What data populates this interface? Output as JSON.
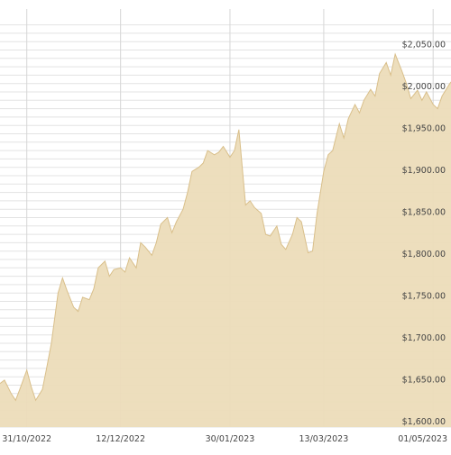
{
  "colors": {
    "area_fill": "#ecdcb9",
    "area_stroke": "#d9bf8a",
    "grid": "#e3e3e3",
    "text": "#444444"
  },
  "chart_data": {
    "type": "area",
    "title": "",
    "xlabel": "",
    "ylabel": "",
    "grid": true,
    "legend": "none",
    "ylim": [
      1600,
      2080
    ],
    "x_range": [
      "2022-10-19",
      "2023-05-09"
    ],
    "x_ticks": [
      "31/10/2022",
      "12/12/2022",
      "30/01/2023",
      "13/03/2023",
      "01/05/2023"
    ],
    "x_tick_dates": [
      "2022-10-31",
      "2022-12-12",
      "2023-01-30",
      "2023-03-13",
      "2023-05-01"
    ],
    "y_ticks": [
      1600,
      1650,
      1700,
      1750,
      1800,
      1850,
      1900,
      1950,
      2000,
      2050
    ],
    "y_tick_labels": [
      "$1,600.00",
      "$1,650.00",
      "$1,700.00",
      "$1,750.00",
      "$1,800.00",
      "$1,850.00",
      "$1,900.00",
      "$1,950.00",
      "$2,000.00",
      "$2,050.00"
    ],
    "series": [
      {
        "x": [
          "2022-10-19",
          "2022-10-21",
          "2022-10-24",
          "2022-10-26",
          "2022-10-28",
          "2022-10-31",
          "2022-11-02",
          "2022-11-04",
          "2022-11-07",
          "2022-11-09",
          "2022-11-11",
          "2022-11-14",
          "2022-11-16",
          "2022-11-18",
          "2022-11-21",
          "2022-11-23",
          "2022-11-25",
          "2022-11-28",
          "2022-11-30",
          "2022-12-02",
          "2022-12-05",
          "2022-12-07",
          "2022-12-09",
          "2022-12-12",
          "2022-12-14",
          "2022-12-16",
          "2022-12-19",
          "2022-12-21",
          "2022-12-23",
          "2022-12-26",
          "2022-12-28",
          "2022-12-30",
          "2023-01-02",
          "2023-01-04",
          "2023-01-06",
          "2023-01-09",
          "2023-01-11",
          "2023-01-13",
          "2023-01-16",
          "2023-01-18",
          "2023-01-20",
          "2023-01-23",
          "2023-01-25",
          "2023-01-27",
          "2023-01-30",
          "2023-02-01",
          "2023-02-03",
          "2023-02-06",
          "2023-02-08",
          "2023-02-10",
          "2023-02-13",
          "2023-02-15",
          "2023-02-17",
          "2023-02-20",
          "2023-02-22",
          "2023-02-24",
          "2023-02-27",
          "2023-03-01",
          "2023-03-03",
          "2023-03-06",
          "2023-03-08",
          "2023-03-10",
          "2023-03-13",
          "2023-03-15",
          "2023-03-17",
          "2023-03-20",
          "2023-03-22",
          "2023-03-24",
          "2023-03-27",
          "2023-03-29",
          "2023-03-31",
          "2023-04-03",
          "2023-04-05",
          "2023-04-07",
          "2023-04-10",
          "2023-04-12",
          "2023-04-14",
          "2023-04-17",
          "2023-04-19",
          "2023-04-21",
          "2023-04-24",
          "2023-04-26",
          "2023-04-28",
          "2023-05-01",
          "2023-05-03",
          "2023-05-05",
          "2023-05-08",
          "2023-05-09"
        ],
        "values": [
          1652,
          1656,
          1640,
          1632,
          1646,
          1668,
          1648,
          1632,
          1645,
          1672,
          1700,
          1760,
          1778,
          1763,
          1743,
          1738,
          1755,
          1752,
          1765,
          1790,
          1798,
          1780,
          1788,
          1790,
          1785,
          1802,
          1790,
          1820,
          1815,
          1805,
          1820,
          1842,
          1850,
          1832,
          1845,
          1860,
          1880,
          1905,
          1910,
          1915,
          1930,
          1925,
          1928,
          1935,
          1922,
          1930,
          1955,
          1865,
          1870,
          1862,
          1855,
          1830,
          1828,
          1840,
          1818,
          1812,
          1830,
          1850,
          1845,
          1808,
          1810,
          1855,
          1905,
          1925,
          1930,
          1962,
          1945,
          1968,
          1985,
          1975,
          1990,
          2003,
          1995,
          2022,
          2035,
          2020,
          2045,
          2025,
          2010,
          1992,
          2002,
          1990,
          2000,
          1985,
          1980,
          1995,
          2008,
          2012
        ]
      }
    ]
  }
}
